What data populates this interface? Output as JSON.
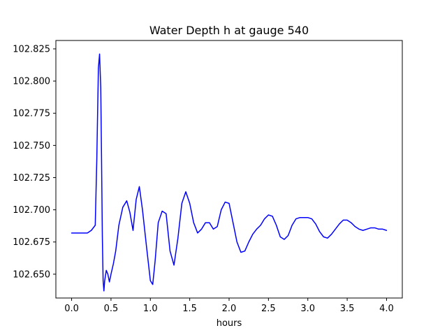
{
  "chart_data": {
    "type": "line",
    "title": "Water Depth h at gauge 540",
    "xlabel": "hours",
    "ylabel": "",
    "xlim": [
      -0.2,
      4.2
    ],
    "ylim": [
      102.6315,
      102.8315
    ],
    "grid": false,
    "xticks": [
      "0.0",
      "0.5",
      "1.0",
      "1.5",
      "2.0",
      "2.5",
      "3.0",
      "3.5",
      "4.0"
    ],
    "yticks": [
      "102.650",
      "102.675",
      "102.700",
      "102.725",
      "102.750",
      "102.775",
      "102.800",
      "102.825"
    ],
    "series": [
      {
        "color": "#0000ff",
        "x": [
          0.0,
          0.1,
          0.2,
          0.25,
          0.3,
          0.32,
          0.34,
          0.355,
          0.37,
          0.38,
          0.39,
          0.4,
          0.41,
          0.42,
          0.44,
          0.46,
          0.48,
          0.5,
          0.53,
          0.56,
          0.6,
          0.65,
          0.7,
          0.74,
          0.78,
          0.82,
          0.86,
          0.9,
          0.95,
          1.0,
          1.03,
          1.06,
          1.1,
          1.15,
          1.2,
          1.25,
          1.3,
          1.35,
          1.4,
          1.45,
          1.5,
          1.55,
          1.6,
          1.65,
          1.7,
          1.75,
          1.8,
          1.85,
          1.9,
          1.95,
          2.0,
          2.05,
          2.1,
          2.15,
          2.2,
          2.25,
          2.3,
          2.35,
          2.4,
          2.45,
          2.5,
          2.55,
          2.6,
          2.65,
          2.7,
          2.75,
          2.8,
          2.85,
          2.9,
          2.95,
          3.0,
          3.05,
          3.1,
          3.15,
          3.2,
          3.25,
          3.3,
          3.35,
          3.4,
          3.45,
          3.5,
          3.55,
          3.6,
          3.65,
          3.7,
          3.75,
          3.8,
          3.85,
          3.9,
          3.95,
          4.0
        ],
        "y": [
          102.682,
          102.682,
          102.682,
          102.684,
          102.688,
          102.74,
          102.81,
          102.821,
          102.795,
          102.74,
          102.68,
          102.645,
          102.637,
          102.645,
          102.653,
          102.65,
          102.644,
          102.65,
          102.658,
          102.668,
          102.688,
          102.702,
          102.707,
          102.698,
          102.684,
          102.708,
          102.718,
          102.7,
          102.672,
          102.645,
          102.642,
          102.66,
          102.69,
          102.699,
          102.697,
          102.668,
          102.657,
          102.678,
          102.705,
          102.714,
          102.705,
          102.69,
          102.682,
          102.685,
          102.69,
          102.69,
          102.685,
          102.687,
          102.7,
          102.706,
          102.705,
          102.69,
          102.675,
          102.667,
          102.668,
          102.675,
          102.681,
          102.685,
          102.688,
          102.693,
          102.696,
          102.695,
          102.688,
          102.679,
          102.677,
          102.68,
          102.688,
          102.693,
          102.694,
          102.694,
          102.694,
          102.693,
          102.689,
          102.683,
          102.679,
          102.678,
          102.681,
          102.685,
          102.689,
          102.692,
          102.692,
          102.69,
          102.687,
          102.685,
          102.684,
          102.685,
          102.686,
          102.686,
          102.685,
          102.685,
          102.684
        ]
      }
    ]
  }
}
